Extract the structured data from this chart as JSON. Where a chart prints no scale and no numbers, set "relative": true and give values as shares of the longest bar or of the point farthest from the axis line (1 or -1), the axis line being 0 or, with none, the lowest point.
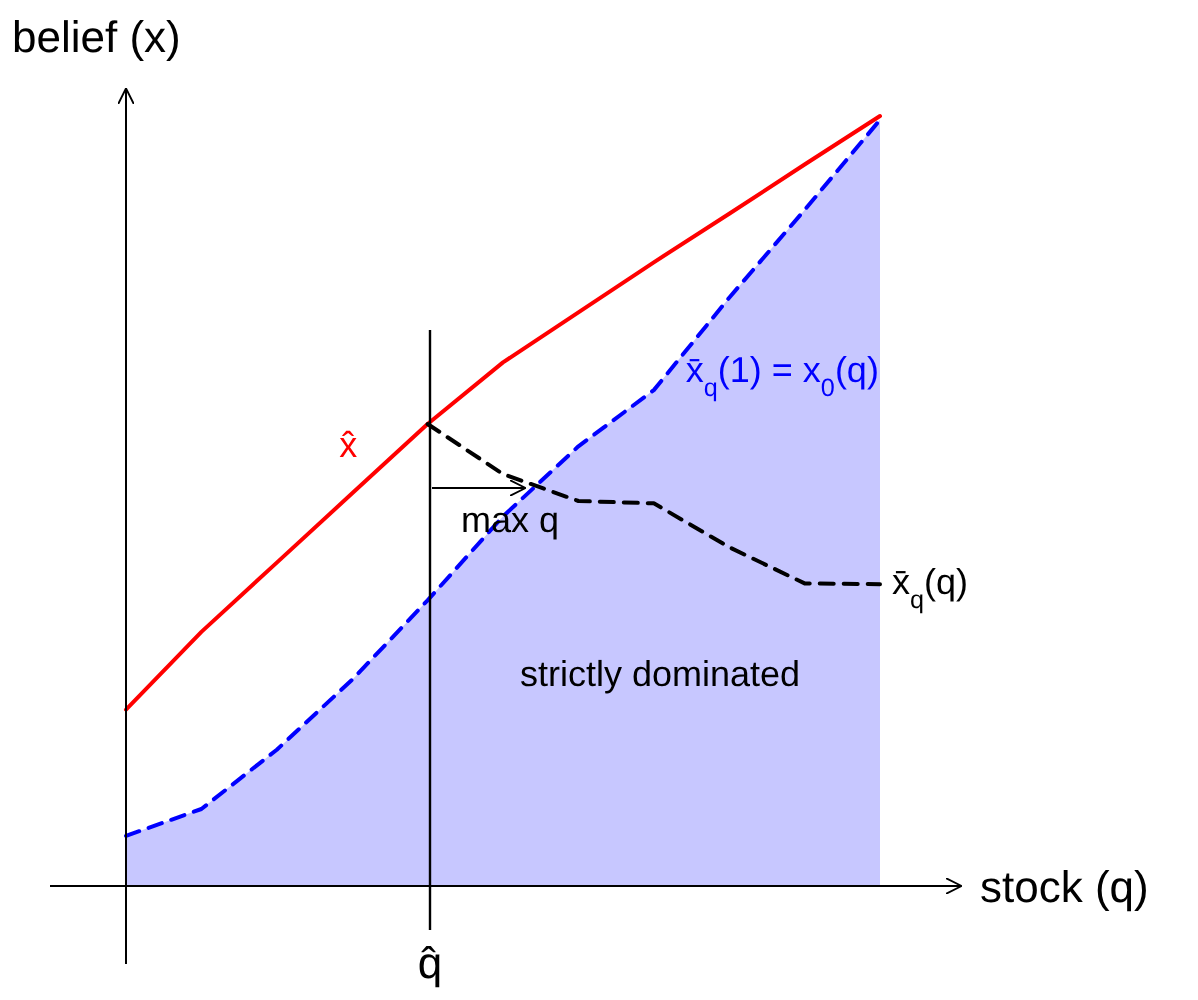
{
  "chart_data": {
    "type": "line",
    "relative": true,
    "xlabel": "stock (q)",
    "ylabel": "belief (x)",
    "categories": [
      null,
      null,
      null,
      null,
      null,
      null,
      null,
      null,
      null,
      null,
      null
    ],
    "series": [
      {
        "name": "x̂",
        "color": "#ff0000",
        "line_style": "solid",
        "values": [
          0.229,
          0.33,
          0.42,
          0.51,
          0.6,
          0.68,
          0.745,
          0.81,
          0.873,
          0.937,
          1
        ]
      },
      {
        "name": "x̄$_{q}$(1) =  x$_{0}$(q)",
        "type": "area",
        "color": "#0000ff",
        "line_style": "dashed",
        "values": [
          0.065,
          0.1,
          0.177,
          0.268,
          0.371,
          0.48,
          0.571,
          0.644,
          0.764,
          0.878,
          0.995
        ]
      },
      {
        "name": "x̄$_{q}$(q)",
        "color": "#000000",
        "line_style": "dashed",
        "values": [
          null,
          null,
          null,
          null,
          0.6,
          0.535,
          0.5,
          0.497,
          0.44,
          0.393,
          0.392
        ]
      }
    ],
    "annotations": [
      "max q",
      "strictly dominated",
      "q̂"
    ]
  }
}
